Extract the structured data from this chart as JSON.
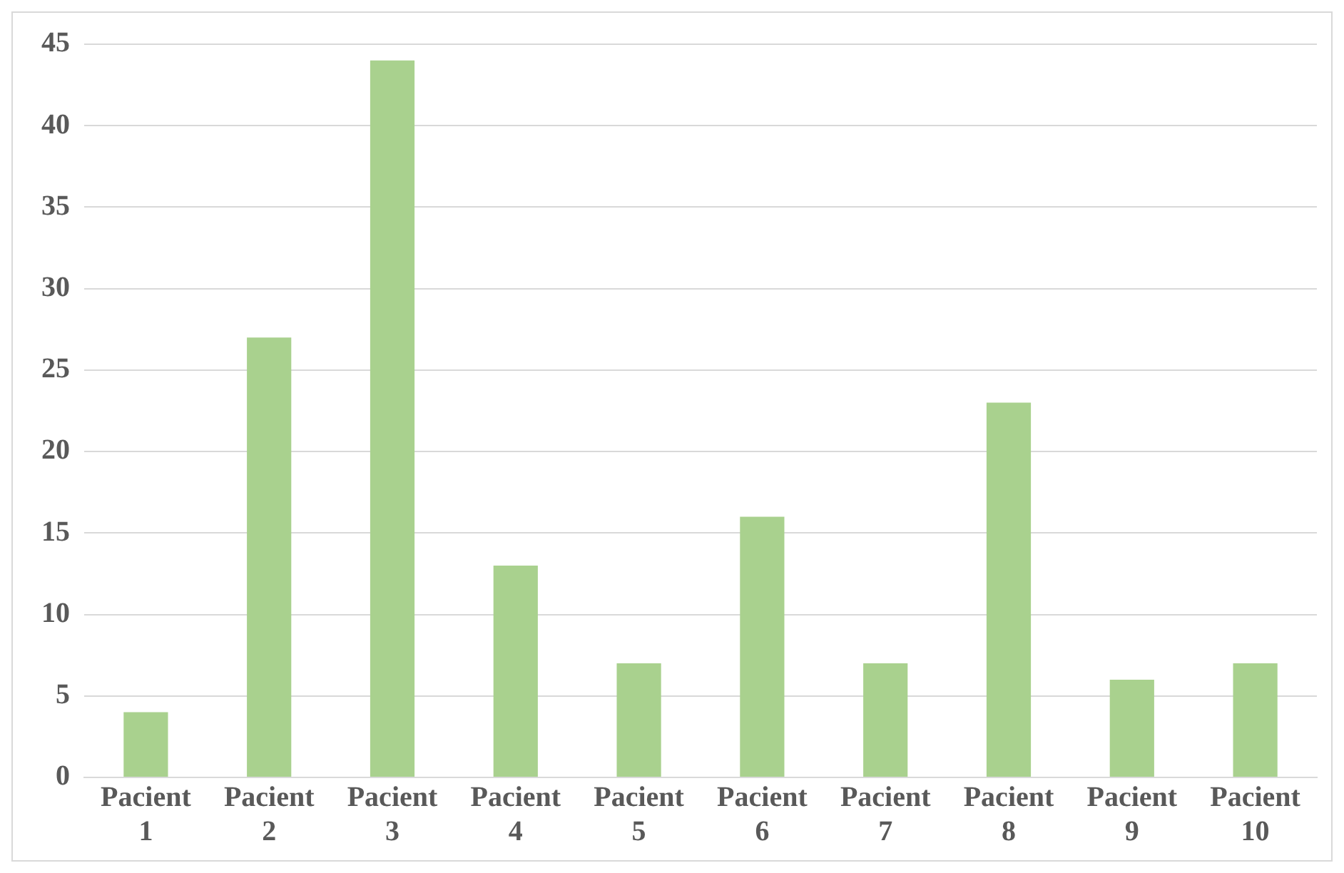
{
  "chart_data": {
    "type": "bar",
    "categories": [
      "Pacient 1",
      "Pacient 2",
      "Pacient 3",
      "Pacient 4",
      "Pacient 5",
      "Pacient 6",
      "Pacient 7",
      "Pacient 8",
      "Pacient 9",
      "Pacient 10"
    ],
    "values": [
      4,
      27,
      44,
      13,
      7,
      16,
      7,
      23,
      6,
      7
    ],
    "color": "#a9d18e",
    "ylim": [
      0,
      45
    ],
    "yticks": [
      0,
      5,
      10,
      15,
      20,
      25,
      30,
      35,
      40,
      45
    ],
    "grid": "y"
  }
}
